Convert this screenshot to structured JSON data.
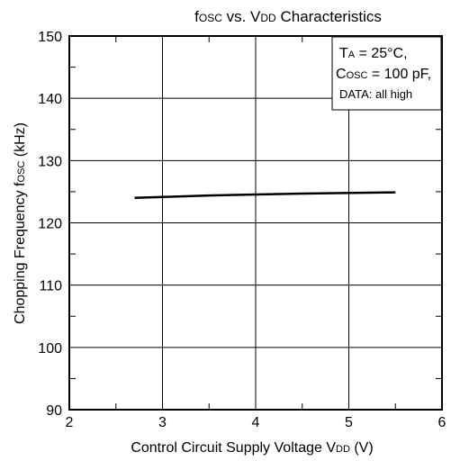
{
  "chart_data": {
    "type": "line",
    "title": {
      "main1": "f",
      "sub1": "OSC",
      "main2": " vs. V",
      "sub2": "DD",
      "main3": " Characteristics"
    },
    "xlabel": {
      "main": "Control Circuit Supply Voltage V",
      "sub": "DD",
      "unit": " (V)"
    },
    "ylabel": {
      "main": "Chopping Frequency f",
      "sub": "OSC",
      "unit": " (kHz)"
    },
    "xlim": [
      2,
      6
    ],
    "ylim": [
      90,
      150
    ],
    "x_ticks": [
      "2",
      "3",
      "4",
      "5",
      "6"
    ],
    "y_ticks": [
      "90",
      "100",
      "110",
      "120",
      "130",
      "140",
      "150"
    ],
    "grid": true,
    "series": [
      {
        "x": [
          2.7,
          3.5,
          4.5,
          5.5
        ],
        "y": [
          124.0,
          124.4,
          124.7,
          124.9
        ]
      }
    ],
    "annotation": {
      "line1_main": "T",
      "line1_sub": "A",
      "line1_rest": " = 25°C,",
      "line2_main": "C",
      "line2_sub": "OSC",
      "line2_rest": " = 100 pF,",
      "line3": "DATA:  all high"
    }
  }
}
